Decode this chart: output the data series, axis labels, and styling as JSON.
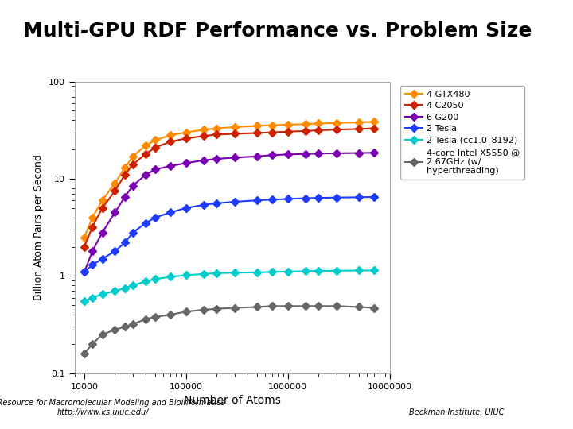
{
  "title": "Multi-GPU RDF Performance vs. Problem Size",
  "xlabel": "Number of Atoms",
  "ylabel": "Billion Atom Pairs per Second",
  "xlim": [
    8000,
    10000000
  ],
  "ylim": [
    0.1,
    100
  ],
  "background_color": "#ffffff",
  "footer_left": "NIH Resource for Macromolecular Modeling and Bioinformatics\nhttp://www.ks.uiuc.edu/",
  "footer_right": "Beckman Institute, UIUC",
  "series": [
    {
      "label": "4 GTX480",
      "color": "#FF8C00",
      "marker": "D",
      "x": [
        10000,
        12000,
        15000,
        20000,
        25000,
        30000,
        40000,
        50000,
        70000,
        100000,
        150000,
        200000,
        300000,
        500000,
        700000,
        1000000,
        1500000,
        2000000,
        3000000,
        5000000,
        7000000
      ],
      "y": [
        2.5,
        4.0,
        6.0,
        9.0,
        13.0,
        17.0,
        22.0,
        25.0,
        28.0,
        30.0,
        32.0,
        33.0,
        34.0,
        35.0,
        35.5,
        36.0,
        36.5,
        37.0,
        37.5,
        38.0,
        38.5
      ]
    },
    {
      "label": "4 C2050",
      "color": "#CC2200",
      "marker": "D",
      "x": [
        10000,
        12000,
        15000,
        20000,
        25000,
        30000,
        40000,
        50000,
        70000,
        100000,
        150000,
        200000,
        300000,
        500000,
        700000,
        1000000,
        1500000,
        2000000,
        3000000,
        5000000,
        7000000
      ],
      "y": [
        2.0,
        3.2,
        5.0,
        7.5,
        11.0,
        14.0,
        18.0,
        21.0,
        24.0,
        26.0,
        27.5,
        28.5,
        29.0,
        29.5,
        30.0,
        30.5,
        31.0,
        31.5,
        32.0,
        32.5,
        33.0
      ]
    },
    {
      "label": "6 G200",
      "color": "#7B00B4",
      "marker": "D",
      "x": [
        10000,
        12000,
        15000,
        20000,
        25000,
        30000,
        40000,
        50000,
        70000,
        100000,
        150000,
        200000,
        300000,
        500000,
        700000,
        1000000,
        1500000,
        2000000,
        3000000,
        5000000,
        7000000
      ],
      "y": [
        1.1,
        1.8,
        2.8,
        4.5,
        6.5,
        8.5,
        11.0,
        12.5,
        13.5,
        14.5,
        15.5,
        16.0,
        16.5,
        17.0,
        17.5,
        17.8,
        18.0,
        18.2,
        18.3,
        18.4,
        18.5
      ]
    },
    {
      "label": "2 Tesla",
      "color": "#1E3CFF",
      "marker": "D",
      "x": [
        10000,
        12000,
        15000,
        20000,
        25000,
        30000,
        40000,
        50000,
        70000,
        100000,
        150000,
        200000,
        300000,
        500000,
        700000,
        1000000,
        1500000,
        2000000,
        3000000,
        5000000,
        7000000
      ],
      "y": [
        1.1,
        1.3,
        1.5,
        1.8,
        2.2,
        2.8,
        3.5,
        4.0,
        4.5,
        5.0,
        5.4,
        5.6,
        5.8,
        6.0,
        6.1,
        6.2,
        6.3,
        6.35,
        6.4,
        6.45,
        6.5
      ]
    },
    {
      "label": "2 Tesla (cc1.0_8192)",
      "color": "#00CCCC",
      "marker": "D",
      "x": [
        10000,
        12000,
        15000,
        20000,
        25000,
        30000,
        40000,
        50000,
        70000,
        100000,
        150000,
        200000,
        300000,
        500000,
        700000,
        1000000,
        1500000,
        2000000,
        3000000,
        5000000,
        7000000
      ],
      "y": [
        0.55,
        0.6,
        0.65,
        0.7,
        0.75,
        0.8,
        0.88,
        0.93,
        0.98,
        1.02,
        1.05,
        1.07,
        1.08,
        1.09,
        1.1,
        1.11,
        1.12,
        1.13,
        1.13,
        1.14,
        1.14
      ]
    },
    {
      "label": "4-core Intel X5550 @\n2.67GHz (w/\nhyperthreading)",
      "color": "#666666",
      "marker": "D",
      "x": [
        10000,
        12000,
        15000,
        20000,
        25000,
        30000,
        40000,
        50000,
        70000,
        100000,
        150000,
        200000,
        300000,
        500000,
        700000,
        1000000,
        1500000,
        2000000,
        3000000,
        5000000,
        7000000
      ],
      "y": [
        0.16,
        0.2,
        0.25,
        0.28,
        0.3,
        0.32,
        0.36,
        0.38,
        0.4,
        0.43,
        0.45,
        0.46,
        0.47,
        0.48,
        0.49,
        0.49,
        0.49,
        0.49,
        0.49,
        0.48,
        0.47
      ]
    }
  ]
}
